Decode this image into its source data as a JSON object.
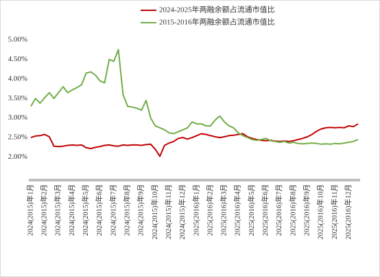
{
  "chart_data": {
    "type": "line",
    "categories": [
      "2024(2015)年1月",
      null,
      null,
      "2024(2015)年2月",
      null,
      null,
      "2024(2015)年3月",
      null,
      null,
      "2024(2015)年4月",
      null,
      null,
      "2024(2015)年5月",
      null,
      null,
      "2024(2015)年6月",
      null,
      null,
      "2024(2015)年7月",
      null,
      null,
      "2024(2015)年8月",
      null,
      null,
      "2024(2015)年9月",
      null,
      null,
      "2024(2015)年10月",
      null,
      null,
      "2024(2015)年11月",
      null,
      null,
      "2024(2015)年12月",
      null,
      null,
      "2025(2016)年1月",
      null,
      null,
      "2025(2016)年2月",
      null,
      null,
      "2025(2016)年3月",
      null,
      null,
      "2025(2016)年4月",
      null,
      null,
      "2025(2016)年5月",
      null,
      null,
      "2025(2016)年6月",
      null,
      null,
      "2025(2016)年7月",
      null,
      null,
      "2025(2016)年8月",
      null,
      null,
      "2025(2016)年9月",
      null,
      null,
      "2025(2016)年10月",
      null,
      null,
      "2025(2016)年11月",
      null,
      null,
      "2025(2016)年12月",
      null,
      null
    ],
    "series": [
      {
        "name": "2024-2025年两融余额占流通市值比",
        "color": "#c00000",
        "values": [
          2.5,
          2.54,
          2.55,
          2.58,
          2.52,
          2.28,
          2.27,
          2.28,
          2.3,
          2.31,
          2.3,
          2.31,
          2.24,
          2.22,
          2.25,
          2.27,
          2.3,
          2.31,
          2.29,
          2.28,
          2.31,
          2.3,
          2.31,
          2.31,
          2.3,
          2.32,
          2.33,
          2.2,
          2.02,
          2.3,
          2.36,
          2.4,
          2.48,
          2.5,
          2.46,
          2.5,
          2.55,
          2.6,
          2.58,
          2.55,
          2.52,
          2.5,
          2.52,
          2.55,
          2.56,
          2.58,
          2.6,
          2.52,
          2.48,
          2.45,
          2.43,
          2.42,
          2.43,
          2.41,
          2.4,
          2.41,
          2.4,
          2.42,
          2.45,
          2.48,
          2.52,
          2.58,
          2.66,
          2.72,
          2.75,
          2.76,
          2.75,
          2.76,
          2.75,
          2.8,
          2.78,
          2.85
        ]
      },
      {
        "name": "2015-2016年两融余额占流通市值比",
        "color": "#70ad47",
        "values": [
          3.3,
          3.5,
          3.38,
          3.52,
          3.65,
          3.5,
          3.65,
          3.8,
          3.65,
          3.72,
          3.78,
          3.85,
          4.15,
          4.18,
          4.1,
          3.95,
          3.9,
          4.5,
          4.45,
          4.75,
          3.6,
          3.3,
          3.28,
          3.25,
          3.2,
          3.45,
          3.0,
          2.8,
          2.75,
          2.7,
          2.62,
          2.6,
          2.65,
          2.7,
          2.75,
          2.9,
          2.85,
          2.85,
          2.8,
          2.8,
          2.95,
          3.05,
          2.9,
          2.8,
          2.75,
          2.62,
          2.55,
          2.5,
          2.45,
          2.43,
          2.45,
          2.48,
          2.42,
          2.4,
          2.38,
          2.4,
          2.36,
          2.38,
          2.35,
          2.34,
          2.35,
          2.36,
          2.35,
          2.33,
          2.34,
          2.33,
          2.35,
          2.34,
          2.36,
          2.38,
          2.4,
          2.45
        ]
      }
    ],
    "ylim": [
      1.5,
      5.0
    ],
    "yticks": [
      {
        "value": 2.0,
        "label": "2.00%"
      },
      {
        "value": 2.5,
        "label": "2.50%"
      },
      {
        "value": 3.0,
        "label": "3.00%"
      },
      {
        "value": 3.5,
        "label": "3.50%"
      },
      {
        "value": 4.0,
        "label": "4.00%"
      },
      {
        "value": 4.5,
        "label": "4.50%"
      },
      {
        "value": 5.0,
        "label": "5.00%"
      }
    ],
    "grid": false,
    "legend": "top"
  }
}
